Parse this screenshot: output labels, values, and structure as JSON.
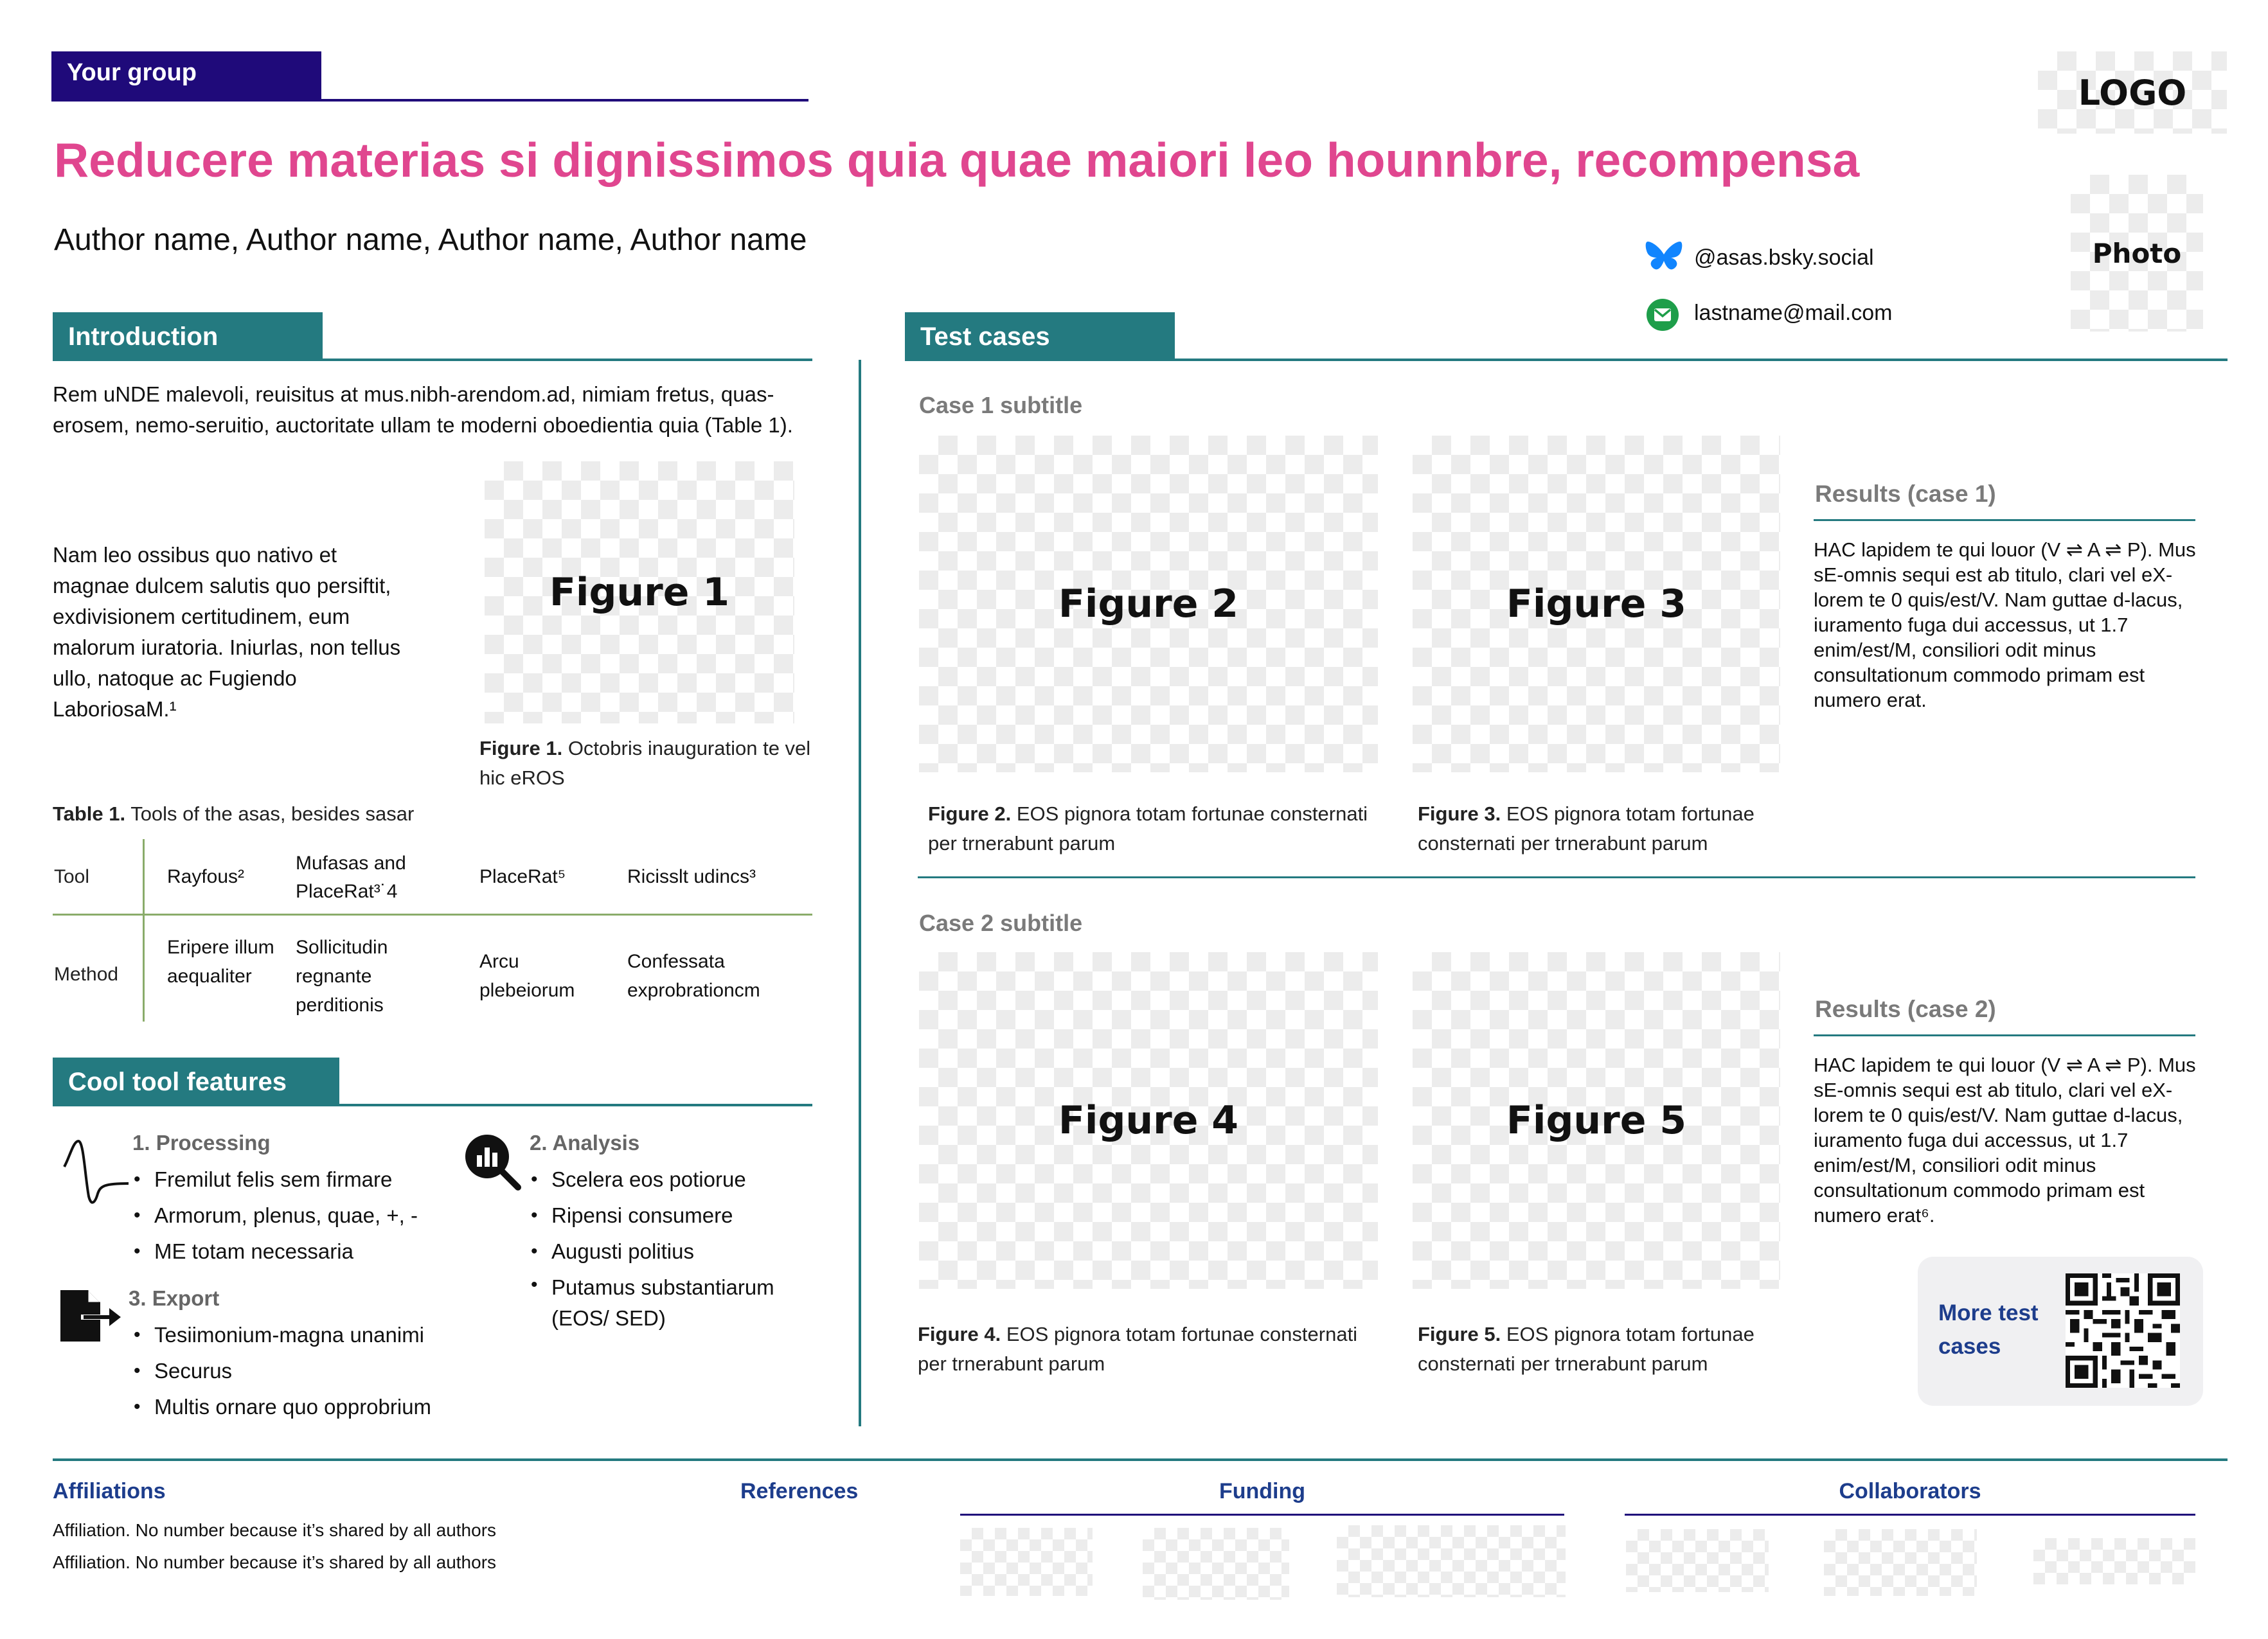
{
  "header": {
    "group_tag": "Your group",
    "logo": "LOGO",
    "title": "Reducere materias si dignissimos quia quae maiori leo hounnbre, recompensa",
    "authors": "Author name, Author name, Author name, Author name",
    "photo": "Photo",
    "social_handle": "@asas.bsky.social",
    "email": "lastname@mail.com"
  },
  "introduction": {
    "heading": "Introduction",
    "para1": "Rem uNDE malevoli, reuisitus at mus.nibh-arendom.ad, nimiam fretus, quas-erosem, nemo-seruitio, auctoritate ullam te moderni oboedientia quia (Table 1).",
    "para2": "Nam leo ossibus quo nativo et magnae dulcem salutis quo persiftit, exdivisionem certitudinem, eum malorum iuratoria. Iniurlas, non tellus ullo, natoque ac Fugiendo LaboriosaM.¹",
    "figure_label": "Figure 1",
    "figure_caption_bold": "Figure 1.",
    "figure_caption": " Octobris inauguration te vel hic eROS",
    "table_caption_bold": "Table 1.",
    "table_caption": " Tools of the asas, besides sasar",
    "table": {
      "row1": [
        "Tool",
        "Rayfous²",
        "Mufasas and PlaceRat³˙4",
        "PlaceRat⁵",
        "Ricisslt udincs³"
      ],
      "row2": [
        "Method",
        "Eripere illum aequaliter",
        "Sollicitudin regnante perditionis",
        "Arcu plebeiorum",
        "Confessata exprobrationcm"
      ]
    }
  },
  "features": {
    "heading": "Cool tool features",
    "processing": {
      "title": "1. Processing",
      "items": [
        "Fremilut felis sem firmare",
        "Armorum, plenus, quae, +, -",
        "ME totam necessaria"
      ]
    },
    "export": {
      "title": "3. Export",
      "items": [
        "Tesiimonium-magna unanimi",
        "Securus",
        "Multis ornare quo opprobrium"
      ]
    },
    "analysis": {
      "title": "2. Analysis",
      "items": [
        "Scelera eos potiorue",
        "Ripensi consumere",
        "Augusti politius",
        "Putamus substantiarum (EOS/ SED)"
      ]
    }
  },
  "test_cases": {
    "heading": "Test cases",
    "case1": {
      "subtitle": "Case 1 subtitle",
      "fig_a_label": "Figure 2",
      "fig_a_caption_bold": "Figure 2.",
      "fig_a_caption": " EOS pignora totam fortunae consternati per trnerabunt parum",
      "fig_b_label": "Figure 3",
      "fig_b_caption_bold": "Figure 3.",
      "fig_b_caption": " EOS pignora totam fortunae consternati per trnerabunt parum",
      "results_title": "Results (case 1)",
      "results_text": "HAC lapidem te qui louor (V ⇌ A ⇌ P). Mus sE-omnis sequi est ab titulo, clari vel eX-lorem te 0 quis/est/V. Nam guttae d-lacus, iuramento fuga dui accessus, ut 1.7 enim/est/M, consiliori odit minus consultationum commodo  primam est numero erat."
    },
    "case2": {
      "subtitle": "Case 2 subtitle",
      "fig_a_label": "Figure 4",
      "fig_a_caption_bold": "Figure 4.",
      "fig_a_caption": " EOS pignora totam fortunae consternati per trnerabunt parum",
      "fig_b_label": "Figure 5",
      "fig_b_caption_bold": "Figure 5.",
      "fig_b_caption": " EOS pignora totam fortunae consternati per trnerabunt parum",
      "results_title": "Results (case 2)",
      "results_text": "HAC lapidem te qui louor (V ⇌ A ⇌ P). Mus sE-omnis sequi est ab titulo, clari vel eX-lorem te 0 quis/est/V. Nam guttae d-lacus, iuramento fuga dui accessus, ut 1.7 enim/est/M, consiliori odit minus consultationum commodo  primam est numero erat⁶."
    },
    "more_label": "More test cases"
  },
  "footer": {
    "affiliations_title": "Affiliations",
    "affiliation_1": "Affiliation. No number because it’s shared by all authors",
    "affiliation_2": "Affiliation. No number because it’s shared by all authors",
    "references_title": "References",
    "funding_title": "Funding",
    "collaborators_title": "Collaborators"
  },
  "colors": {
    "title_pink": "#e0468f",
    "teal": "#247a80",
    "navy": "#1f0a7a",
    "footer_blue": "#1d3d8c",
    "bluesky": "#1185fe",
    "mail_green": "#1e9e4a"
  },
  "icons": [
    "bluesky-butterfly-icon",
    "mail-icon",
    "signal-wave-icon",
    "search-chart-icon",
    "export-file-icon",
    "qr-code-icon"
  ]
}
